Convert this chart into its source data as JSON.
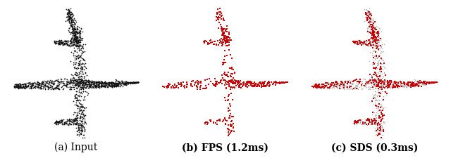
{
  "captions": [
    "(a) Input",
    "(b) FPS (1.2ms)",
    "(c) SDS (0.3ms)"
  ],
  "caption_fontsize": 10,
  "background_color": "#ffffff",
  "input_color": "#111111",
  "fps_sampled_color": "#cc0000",
  "sds_sampled_color": "#cc0000",
  "sds_unsampled_color": "#aaaaaa",
  "n_input": 2000,
  "n_fps": 512,
  "n_sds": 512,
  "seed": 7
}
